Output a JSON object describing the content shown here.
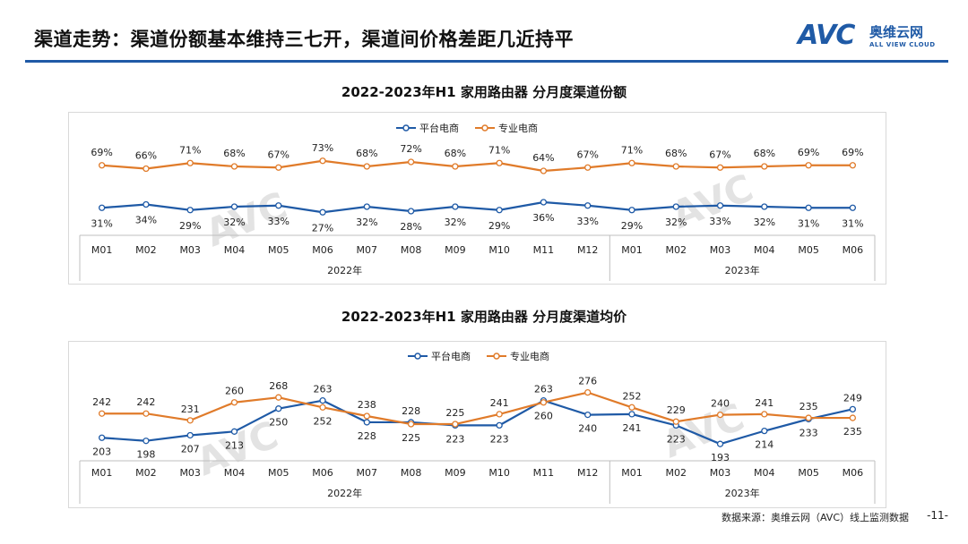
{
  "header": {
    "title": "渠道走势：渠道份额基本维持三七开，渠道间价格差距几近持平"
  },
  "logo": {
    "brand": "AVC",
    "cn": "奥维云网",
    "en": "ALL VIEW CLOUD"
  },
  "colors": {
    "online_platform": "#1f5aa6",
    "pro_ecommerce": "#e07b2a",
    "accent": "#1f5aa6"
  },
  "chart_data": [
    {
      "type": "line",
      "title": "2022-2023年H1 家用路由器 分月度渠道份额",
      "categories": [
        "M01",
        "M02",
        "M03",
        "M04",
        "M05",
        "M06",
        "M07",
        "M08",
        "M09",
        "M10",
        "M11",
        "M12",
        "M01",
        "M02",
        "M03",
        "M04",
        "M05",
        "M06"
      ],
      "year_groups": [
        {
          "label": "2022年",
          "count": 12
        },
        {
          "label": "2023年",
          "count": 6
        }
      ],
      "series": [
        {
          "name": "平台电商",
          "values": [
            31,
            34,
            29,
            32,
            33,
            27,
            32,
            28,
            32,
            29,
            36,
            33,
            29,
            32,
            33,
            32,
            31,
            31
          ],
          "labels": [
            "31%",
            "34%",
            "29%",
            "32%",
            "33%",
            "27%",
            "32%",
            "28%",
            "32%",
            "29%",
            "36%",
            "33%",
            "29%",
            "32%",
            "33%",
            "32%",
            "31%",
            "31%"
          ]
        },
        {
          "name": "专业电商",
          "values": [
            69,
            66,
            71,
            68,
            67,
            73,
            68,
            72,
            68,
            71,
            64,
            67,
            71,
            68,
            67,
            68,
            69,
            69
          ],
          "labels": [
            "69%",
            "66%",
            "71%",
            "68%",
            "67%",
            "73%",
            "68%",
            "72%",
            "68%",
            "71%",
            "64%",
            "67%",
            "71%",
            "68%",
            "67%",
            "68%",
            "69%",
            "69%"
          ]
        }
      ],
      "ylim": [
        0,
        100
      ],
      "legend": "top-center",
      "unit": "%"
    },
    {
      "type": "line",
      "title": "2022-2023年H1 家用路由器 分月度渠道均价",
      "categories": [
        "M01",
        "M02",
        "M03",
        "M04",
        "M05",
        "M06",
        "M07",
        "M08",
        "M09",
        "M10",
        "M11",
        "M12",
        "M01",
        "M02",
        "M03",
        "M04",
        "M05",
        "M06"
      ],
      "year_groups": [
        {
          "label": "2022年",
          "count": 12
        },
        {
          "label": "2023年",
          "count": 6
        }
      ],
      "series": [
        {
          "name": "平台电商",
          "values": [
            203,
            198,
            207,
            213,
            250,
            263,
            228,
            228,
            223,
            223,
            263,
            240,
            241,
            223,
            193,
            214,
            233,
            249
          ],
          "labels": [
            "203",
            "198",
            "207",
            "213",
            "250",
            "263",
            "228",
            "228",
            "223",
            "223",
            "263",
            "240",
            "241",
            "223",
            "193",
            "214",
            "233",
            "249"
          ]
        },
        {
          "name": "专业电商",
          "values": [
            242,
            242,
            231,
            260,
            268,
            252,
            238,
            225,
            225,
            241,
            260,
            276,
            252,
            229,
            240,
            241,
            235,
            235
          ],
          "labels": [
            "242",
            "242",
            "231",
            "260",
            "268",
            "252",
            "238",
            "225",
            "225",
            "241",
            "260",
            "276",
            "252",
            "229",
            "240",
            "241",
            "235",
            "235"
          ]
        }
      ],
      "ylim": [
        150,
        300
      ],
      "legend": "top-center",
      "unit": "元"
    }
  ],
  "footer": {
    "source": "数据来源：奥维云网（AVC）线上监测数据",
    "page": "-11-"
  }
}
